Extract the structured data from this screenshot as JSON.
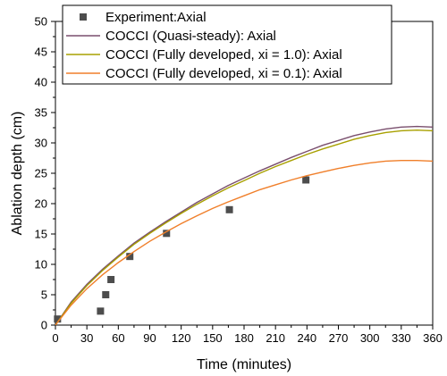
{
  "chart_data": {
    "type": "line",
    "xlabel": "Time (minutes)",
    "ylabel": "Ablation depth (cm)",
    "xlim": [
      0,
      360
    ],
    "ylim": [
      0,
      50
    ],
    "x_ticks": [
      0,
      30,
      60,
      90,
      120,
      150,
      180,
      210,
      240,
      270,
      300,
      330,
      360
    ],
    "y_ticks": [
      0,
      5,
      10,
      15,
      20,
      25,
      30,
      35,
      40,
      45,
      50
    ],
    "grid": false,
    "legend_position": "top-left",
    "series": [
      {
        "name": "Experiment:Axial",
        "kind": "scatter",
        "color": "#4d4d4d",
        "points": [
          [
            2,
            1.0
          ],
          [
            43,
            2.3
          ],
          [
            48,
            5.0
          ],
          [
            53,
            7.5
          ],
          [
            71,
            11.3
          ],
          [
            106,
            15.1
          ],
          [
            166,
            19.0
          ],
          [
            239,
            23.9
          ]
        ]
      },
      {
        "name": "COCCI (Quasi-steady): Axial",
        "kind": "line",
        "color": "#7a4f6e",
        "points": [
          [
            0,
            0
          ],
          [
            15,
            3.8
          ],
          [
            30,
            6.7
          ],
          [
            45,
            9.2
          ],
          [
            60,
            11.4
          ],
          [
            75,
            13.5
          ],
          [
            90,
            15.3
          ],
          [
            105,
            17.0
          ],
          [
            120,
            18.6
          ],
          [
            135,
            20.2
          ],
          [
            150,
            21.6
          ],
          [
            165,
            23.0
          ],
          [
            180,
            24.2
          ],
          [
            195,
            25.4
          ],
          [
            210,
            26.5
          ],
          [
            225,
            27.6
          ],
          [
            240,
            28.6
          ],
          [
            255,
            29.6
          ],
          [
            270,
            30.4
          ],
          [
            285,
            31.2
          ],
          [
            300,
            31.8
          ],
          [
            315,
            32.3
          ],
          [
            330,
            32.6
          ],
          [
            345,
            32.7
          ],
          [
            360,
            32.6
          ]
        ]
      },
      {
        "name": "COCCI (Fully developed, xi = 1.0): Axial",
        "kind": "line",
        "color": "#a8a000",
        "points": [
          [
            0,
            0
          ],
          [
            15,
            3.6
          ],
          [
            30,
            6.5
          ],
          [
            45,
            9.0
          ],
          [
            60,
            11.2
          ],
          [
            75,
            13.3
          ],
          [
            90,
            15.1
          ],
          [
            105,
            16.8
          ],
          [
            120,
            18.4
          ],
          [
            135,
            19.9
          ],
          [
            150,
            21.3
          ],
          [
            165,
            22.6
          ],
          [
            180,
            23.8
          ],
          [
            195,
            25.0
          ],
          [
            210,
            26.1
          ],
          [
            225,
            27.1
          ],
          [
            240,
            28.1
          ],
          [
            255,
            29.0
          ],
          [
            270,
            29.8
          ],
          [
            285,
            30.6
          ],
          [
            300,
            31.2
          ],
          [
            315,
            31.7
          ],
          [
            330,
            32.0
          ],
          [
            345,
            32.1
          ],
          [
            360,
            32.0
          ]
        ]
      },
      {
        "name": "COCCI (Fully developed, xi = 0.1): Axial",
        "kind": "line",
        "color": "#f07f2a",
        "points": [
          [
            0,
            0
          ],
          [
            15,
            3.3
          ],
          [
            30,
            6.0
          ],
          [
            45,
            8.3
          ],
          [
            60,
            10.3
          ],
          [
            75,
            12.1
          ],
          [
            90,
            13.8
          ],
          [
            105,
            15.3
          ],
          [
            120,
            16.7
          ],
          [
            135,
            18.0
          ],
          [
            150,
            19.2
          ],
          [
            165,
            20.3
          ],
          [
            180,
            21.3
          ],
          [
            195,
            22.3
          ],
          [
            210,
            23.1
          ],
          [
            225,
            23.9
          ],
          [
            240,
            24.6
          ],
          [
            255,
            25.2
          ],
          [
            270,
            25.8
          ],
          [
            285,
            26.3
          ],
          [
            300,
            26.7
          ],
          [
            315,
            27.0
          ],
          [
            330,
            27.1
          ],
          [
            345,
            27.1
          ],
          [
            360,
            27.0
          ]
        ]
      }
    ]
  }
}
